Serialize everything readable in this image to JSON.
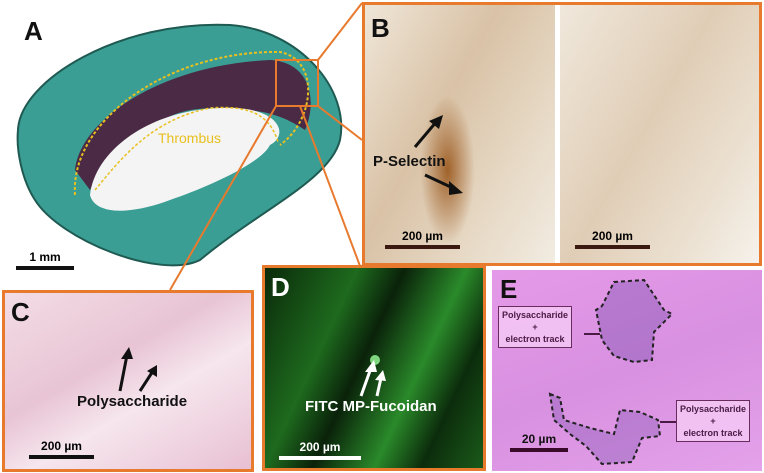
{
  "figure": {
    "panels": {
      "A": {
        "letter": "A",
        "annotation": "Thrombus",
        "scale_bar": "1 mm"
      },
      "B": {
        "letter": "B",
        "annotation": "P-Selectin",
        "scale_bar_left": "200 µm",
        "scale_bar_right": "200 µm"
      },
      "C": {
        "letter": "C",
        "annotation": "Polysaccharide",
        "scale_bar": "200 µm"
      },
      "D": {
        "letter": "D",
        "annotation": "FITC MP-Fucoidan",
        "scale_bar": "200 µm"
      },
      "E": {
        "letter": "E",
        "box_top": [
          "Polysaccharide",
          "+",
          "electron track"
        ],
        "box_bottom": [
          "Polysaccharide",
          "+",
          "electron track"
        ],
        "scale_bar": "20 µm"
      }
    },
    "colors": {
      "frame": "#e87a2e",
      "thrombus_outline": "#e8c020",
      "tissue_stain": "#3a9e94",
      "fluorescence": "#38c43a",
      "he_stain": "#d890e0",
      "ihc_stain": "#e8dccb"
    }
  }
}
